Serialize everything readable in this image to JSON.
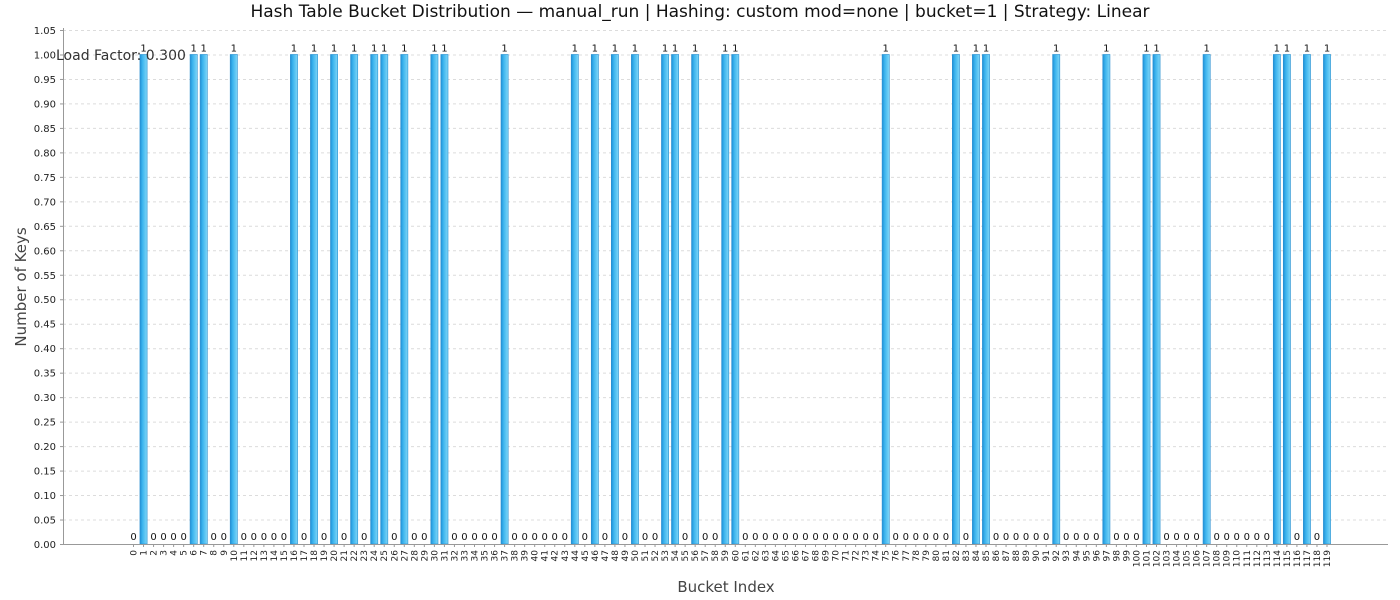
{
  "chart_data": {
    "type": "bar",
    "title": "Hash Table Bucket Distribution — manual_run | Hashing: custom mod=none | bucket=1 | Strategy: Linear",
    "xlabel": "Bucket Index",
    "ylabel": "Number of Keys",
    "annotation": "Load Factor: 0.300",
    "ylim": [
      0,
      1.05
    ],
    "yticks": [
      "0.00",
      "0.05",
      "0.10",
      "0.15",
      "0.20",
      "0.25",
      "0.30",
      "0.35",
      "0.40",
      "0.45",
      "0.50",
      "0.55",
      "0.60",
      "0.65",
      "0.70",
      "0.75",
      "0.80",
      "0.85",
      "0.90",
      "0.95",
      "1.00",
      "1.05"
    ],
    "grid": true,
    "legend": "none",
    "categories": [
      "0",
      "1",
      "2",
      "3",
      "4",
      "5",
      "6",
      "7",
      "8",
      "9",
      "10",
      "11",
      "12",
      "13",
      "14",
      "15",
      "16",
      "17",
      "18",
      "19",
      "20",
      "21",
      "22",
      "23",
      "24",
      "25",
      "26",
      "27",
      "28",
      "29",
      "30",
      "31",
      "32",
      "33",
      "34",
      "35",
      "36",
      "37",
      "38",
      "39",
      "40",
      "41",
      "42",
      "43",
      "44",
      "45",
      "46",
      "47",
      "48",
      "49",
      "50",
      "51",
      "52",
      "53",
      "54",
      "55",
      "56",
      "57",
      "58",
      "59",
      "60",
      "61",
      "62",
      "63",
      "64",
      "65",
      "66",
      "67",
      "68",
      "69",
      "70",
      "71",
      "72",
      "73",
      "74",
      "75",
      "76",
      "77",
      "78",
      "79",
      "80",
      "81",
      "82",
      "83",
      "84",
      "85",
      "86",
      "87",
      "88",
      "89",
      "90",
      "91",
      "92",
      "93",
      "94",
      "95",
      "96",
      "97",
      "98",
      "99",
      "100",
      "101",
      "102",
      "103",
      "104",
      "105",
      "106",
      "107",
      "108",
      "109",
      "110",
      "111",
      "112",
      "113",
      "114",
      "115",
      "116",
      "117",
      "118",
      "119"
    ],
    "values": [
      0,
      1,
      0,
      0,
      0,
      0,
      1,
      1,
      0,
      0,
      1,
      0,
      0,
      0,
      0,
      0,
      1,
      0,
      1,
      0,
      1,
      0,
      1,
      0,
      1,
      1,
      0,
      1,
      0,
      0,
      1,
      1,
      0,
      0,
      0,
      0,
      0,
      1,
      0,
      0,
      0,
      0,
      0,
      0,
      1,
      0,
      1,
      0,
      1,
      0,
      1,
      0,
      0,
      1,
      1,
      0,
      1,
      0,
      0,
      1,
      1,
      0,
      0,
      0,
      0,
      0,
      0,
      0,
      0,
      0,
      0,
      0,
      0,
      0,
      0,
      1,
      0,
      0,
      0,
      0,
      0,
      0,
      1,
      0,
      1,
      1,
      0,
      0,
      0,
      0,
      0,
      0,
      1,
      0,
      0,
      0,
      0,
      1,
      0,
      0,
      0,
      1,
      1,
      0,
      0,
      0,
      0,
      1,
      0,
      0,
      0,
      0,
      0,
      0,
      1,
      1,
      0,
      1,
      0,
      1
    ],
    "colors": {
      "bar_light": "#7fd6f7",
      "bar_mid": "#3cb4ee",
      "bar_dark": "#1f8fd6",
      "bar_edge": "#2a8fd0"
    }
  }
}
